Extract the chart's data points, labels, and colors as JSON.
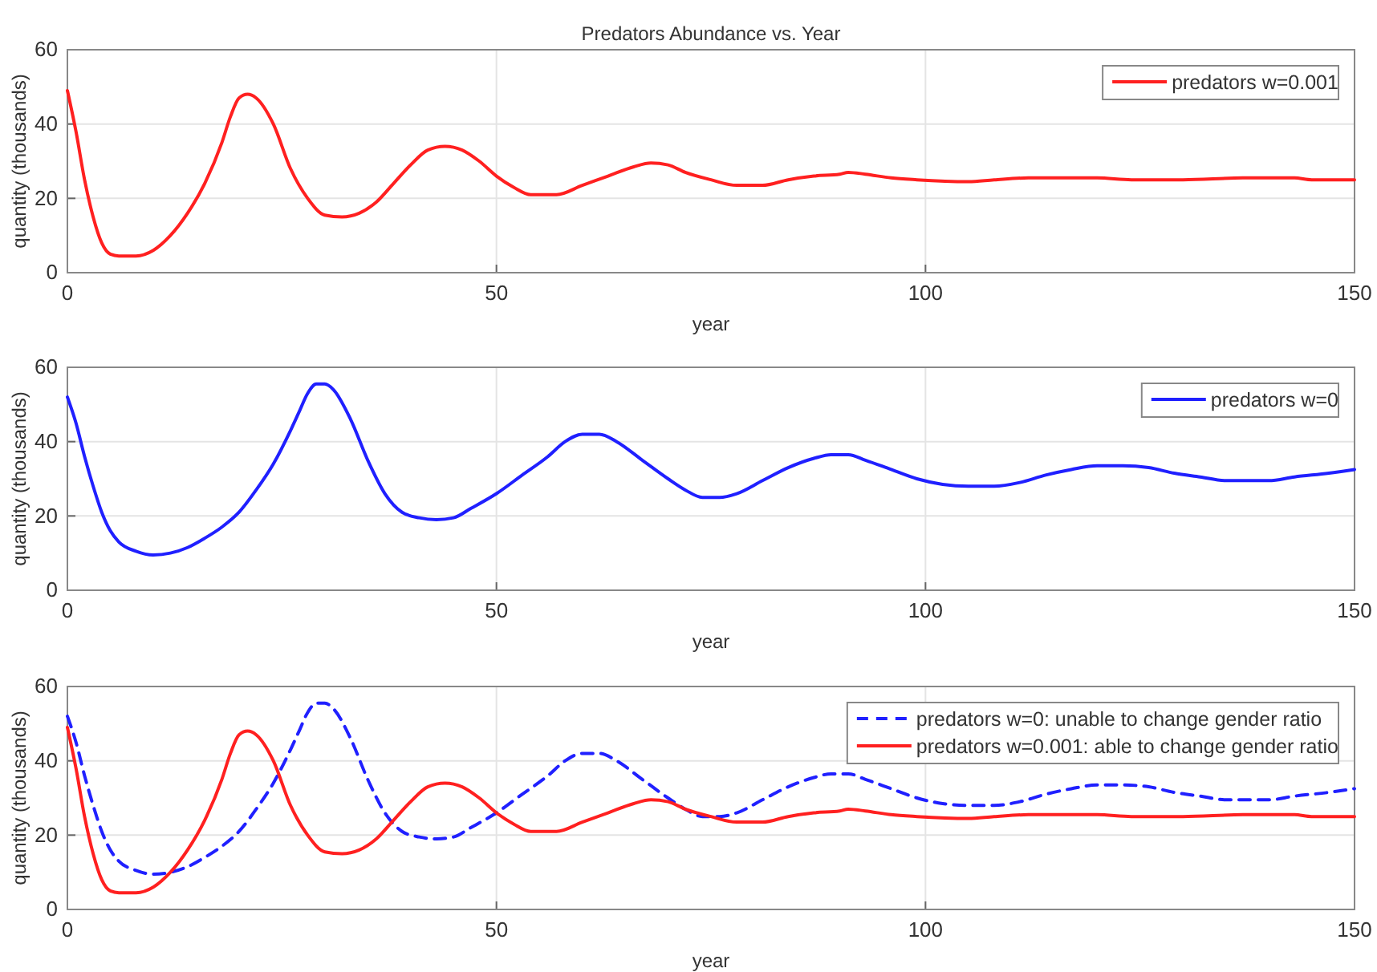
{
  "chart_data": [
    {
      "type": "line",
      "title": "Predators Abundance vs. Year",
      "xlabel": "year",
      "ylabel": "quantity (thousands)",
      "xlim": [
        0,
        150
      ],
      "xticks": [
        0,
        50,
        100,
        150
      ],
      "ylim": [
        0,
        60
      ],
      "yticks": [
        0,
        20,
        40,
        60
      ],
      "grid": true,
      "legend": "top right",
      "series": [
        {
          "name": "predators w=0.001",
          "color": "#ff2020",
          "line_style": "solid",
          "x": [
            0,
            1,
            2,
            3,
            4,
            5,
            6,
            8,
            10,
            12,
            14,
            16,
            18,
            19,
            20,
            21,
            22,
            24,
            26,
            28,
            30,
            32,
            34,
            36,
            38,
            40,
            42,
            44,
            46,
            48,
            50,
            52,
            54,
            57,
            60,
            63,
            66,
            68,
            70,
            72,
            75,
            78,
            81,
            84,
            87,
            90,
            91,
            93,
            96,
            99,
            105,
            108,
            112,
            120,
            124,
            130,
            137,
            143,
            145,
            150
          ],
          "values": [
            49,
            38,
            25,
            15,
            8,
            5,
            4.5,
            4.5,
            6,
            10,
            16,
            24,
            35,
            42,
            47,
            48,
            47,
            40,
            28,
            20,
            15.5,
            15,
            16,
            19,
            24,
            29,
            33,
            34,
            33,
            30,
            26,
            23,
            21,
            21,
            23.5,
            26,
            28.5,
            29.5,
            29,
            27,
            25,
            23.5,
            23.5,
            25,
            26,
            26.5,
            27,
            26.5,
            25.5,
            25,
            24.5,
            25,
            25.5,
            25.5,
            25,
            25,
            25.5,
            25.5,
            25,
            25
          ]
        }
      ]
    },
    {
      "type": "line",
      "xlabel": "year",
      "ylabel": "quantity (thousands)",
      "xlim": [
        0,
        150
      ],
      "xticks": [
        0,
        50,
        100,
        150
      ],
      "ylim": [
        0,
        60
      ],
      "yticks": [
        0,
        20,
        40,
        60
      ],
      "grid": true,
      "legend": "top right",
      "series": [
        {
          "name": "predators w=0",
          "color": "#2020ff",
          "line_style": "solid",
          "x": [
            0,
            1,
            2,
            3,
            4,
            5,
            6,
            8,
            10,
            12,
            14,
            16,
            18,
            20,
            22,
            24,
            26,
            27,
            28,
            29,
            30,
            31,
            33,
            35,
            37,
            39,
            41,
            43,
            45,
            47,
            50,
            53,
            56,
            58,
            60,
            62,
            64,
            67,
            70,
            72,
            74,
            76,
            78,
            81,
            84,
            87,
            89,
            91,
            93,
            96,
            99,
            102,
            105,
            108,
            111,
            114,
            117,
            120,
            123,
            126,
            129,
            132,
            135,
            140,
            143,
            147,
            150
          ],
          "values": [
            52,
            45,
            36,
            28,
            21,
            16,
            13,
            10.5,
            9.5,
            10,
            11.5,
            14,
            17,
            21,
            27,
            34,
            43,
            48,
            53,
            55.5,
            55.5,
            54,
            46,
            35,
            26,
            21,
            19.5,
            19,
            19.5,
            22,
            26,
            31,
            36,
            40,
            42,
            42,
            40,
            35,
            30,
            27,
            25,
            25,
            26,
            29.5,
            33,
            35.5,
            36.5,
            36.5,
            35,
            32.5,
            30,
            28.5,
            28,
            28,
            29,
            31,
            32.5,
            33.5,
            33.5,
            33,
            31.5,
            30.5,
            29.5,
            29.5,
            30.5,
            31.5,
            32.5
          ]
        }
      ]
    },
    {
      "type": "line",
      "xlabel": "year",
      "ylabel": "quantity (thousands)",
      "xlim": [
        0,
        150
      ],
      "xticks": [
        0,
        50,
        100,
        150
      ],
      "ylim": [
        0,
        60
      ],
      "yticks": [
        0,
        20,
        40,
        60
      ],
      "grid": true,
      "legend": "top right",
      "series": [
        {
          "name": "predators w=0: unable to change gender ratio",
          "color": "#2020ff",
          "line_style": "dashed",
          "x": [
            0,
            1,
            2,
            3,
            4,
            5,
            6,
            8,
            10,
            12,
            14,
            16,
            18,
            20,
            22,
            24,
            26,
            27,
            28,
            29,
            30,
            31,
            33,
            35,
            37,
            39,
            41,
            43,
            45,
            47,
            50,
            53,
            56,
            58,
            60,
            62,
            64,
            67,
            70,
            72,
            74,
            76,
            78,
            81,
            84,
            87,
            89,
            91,
            93,
            96,
            99,
            102,
            105,
            108,
            111,
            114,
            117,
            120,
            123,
            126,
            129,
            132,
            135,
            140,
            143,
            147,
            150
          ],
          "values": [
            52,
            45,
            36,
            28,
            21,
            16,
            13,
            10.5,
            9.5,
            10,
            11.5,
            14,
            17,
            21,
            27,
            34,
            43,
            48,
            53,
            55.5,
            55.5,
            54,
            46,
            35,
            26,
            21,
            19.5,
            19,
            19.5,
            22,
            26,
            31,
            36,
            40,
            42,
            42,
            40,
            35,
            30,
            27,
            25,
            25,
            26,
            29.5,
            33,
            35.5,
            36.5,
            36.5,
            35,
            32.5,
            30,
            28.5,
            28,
            28,
            29,
            31,
            32.5,
            33.5,
            33.5,
            33,
            31.5,
            30.5,
            29.5,
            29.5,
            30.5,
            31.5,
            32.5
          ]
        },
        {
          "name": "predators w=0.001: able to change gender ratio",
          "color": "#ff2020",
          "line_style": "solid",
          "x": [
            0,
            1,
            2,
            3,
            4,
            5,
            6,
            8,
            10,
            12,
            14,
            16,
            18,
            19,
            20,
            21,
            22,
            24,
            26,
            28,
            30,
            32,
            34,
            36,
            38,
            40,
            42,
            44,
            46,
            48,
            50,
            52,
            54,
            57,
            60,
            63,
            66,
            68,
            70,
            72,
            75,
            78,
            81,
            84,
            87,
            90,
            91,
            93,
            96,
            99,
            105,
            108,
            112,
            120,
            124,
            130,
            137,
            143,
            145,
            150
          ],
          "values": [
            49,
            38,
            25,
            15,
            8,
            5,
            4.5,
            4.5,
            6,
            10,
            16,
            24,
            35,
            42,
            47,
            48,
            47,
            40,
            28,
            20,
            15.5,
            15,
            16,
            19,
            24,
            29,
            33,
            34,
            33,
            30,
            26,
            23,
            21,
            21,
            23.5,
            26,
            28.5,
            29.5,
            29,
            27,
            25,
            23.5,
            23.5,
            25,
            26,
            26.5,
            27,
            26.5,
            25.5,
            25,
            24.5,
            25,
            25.5,
            25.5,
            25,
            25,
            25.5,
            25.5,
            25,
            25
          ]
        }
      ]
    }
  ]
}
